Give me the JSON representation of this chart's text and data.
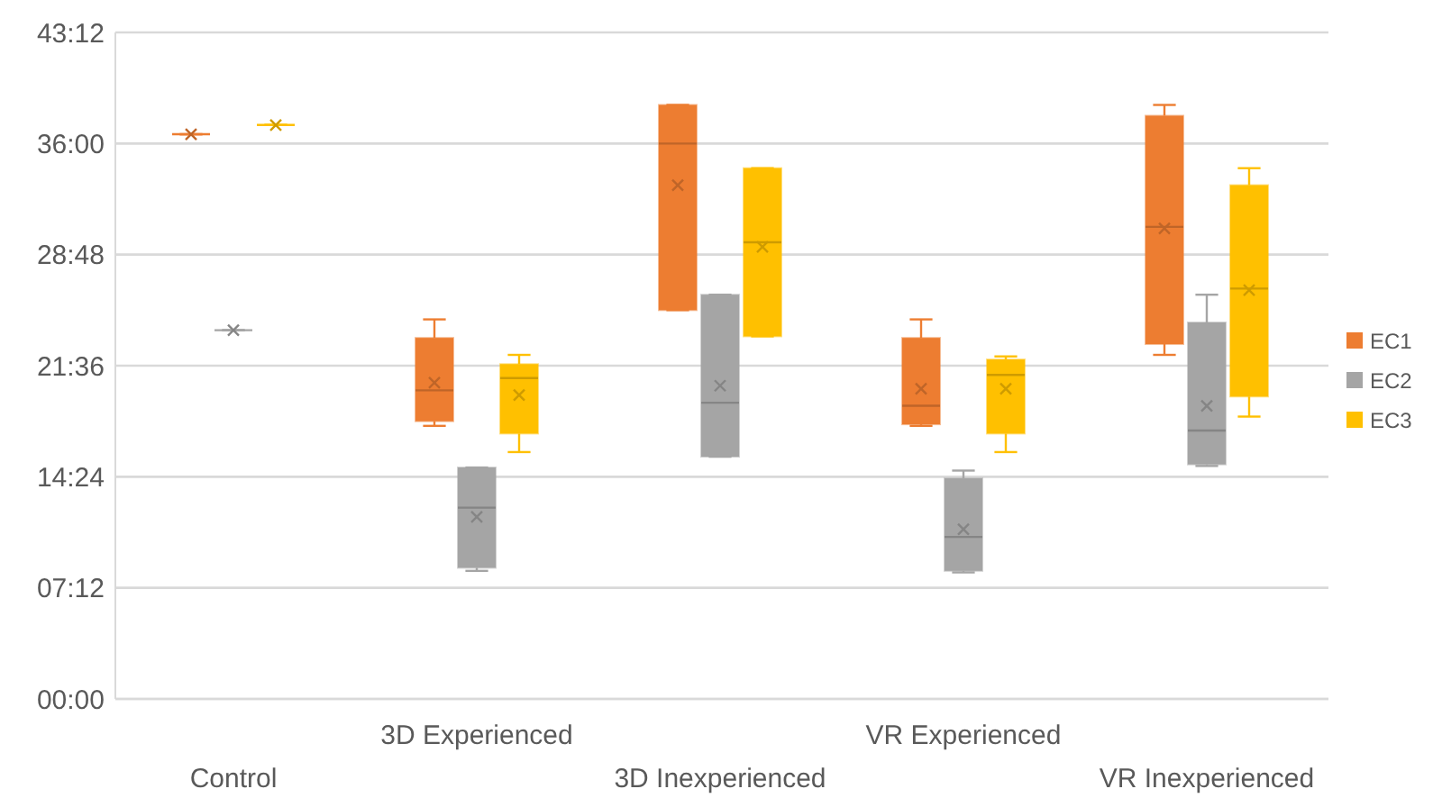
{
  "chart_data": {
    "type": "box",
    "categories": [
      "Control",
      "3D Experienced",
      "3D Inexperienced",
      "VR Experienced",
      "VR Inexperienced"
    ],
    "ylim": [
      0,
      43.2
    ],
    "yticks": [
      {
        "value": 0,
        "label": "00:00"
      },
      {
        "value": 7.2,
        "label": "07:12"
      },
      {
        "value": 14.4,
        "label": "14:24"
      },
      {
        "value": 21.6,
        "label": "21:36"
      },
      {
        "value": 28.8,
        "label": "28:48"
      },
      {
        "value": 36,
        "label": "36:00"
      },
      {
        "value": 43.2,
        "label": "43:12"
      }
    ],
    "grid": "y",
    "legend": "right",
    "series": [
      {
        "name": "EC1",
        "color": "#ed7d31",
        "boxes": [
          {
            "low": 36.6,
            "q1": 36.6,
            "median": 36.6,
            "q3": 36.6,
            "high": 36.6,
            "mean": 36.6
          },
          {
            "low": 17.7,
            "q1": 18.0,
            "median": 20.0,
            "q3": 23.4,
            "high": 24.6,
            "mean": 20.5
          },
          {
            "low": 25.2,
            "q1": 25.2,
            "median": 36.0,
            "q3": 38.5,
            "high": 38.5,
            "mean": 33.3
          },
          {
            "low": 17.7,
            "q1": 17.8,
            "median": 19.0,
            "q3": 23.4,
            "high": 24.6,
            "mean": 20.1
          },
          {
            "low": 22.3,
            "q1": 23.0,
            "median": 30.6,
            "q3": 37.8,
            "high": 38.5,
            "mean": 30.5
          }
        ]
      },
      {
        "name": "EC2",
        "color": "#a5a5a5",
        "boxes": [
          {
            "low": 23.9,
            "q1": 23.9,
            "median": 23.9,
            "q3": 23.9,
            "high": 23.9,
            "mean": 23.9
          },
          {
            "low": 8.3,
            "q1": 8.5,
            "median": 12.4,
            "q3": 15.0,
            "high": 15.0,
            "mean": 11.8
          },
          {
            "low": 15.7,
            "q1": 15.7,
            "median": 19.2,
            "q3": 26.2,
            "high": 26.2,
            "mean": 20.3
          },
          {
            "low": 8.2,
            "q1": 8.3,
            "median": 10.5,
            "q3": 14.3,
            "high": 14.8,
            "mean": 11.0
          },
          {
            "low": 15.1,
            "q1": 15.2,
            "median": 17.4,
            "q3": 24.4,
            "high": 26.2,
            "mean": 19.0
          }
        ]
      },
      {
        "name": "EC3",
        "color": "#ffc000",
        "boxes": [
          {
            "low": 37.2,
            "q1": 37.2,
            "median": 37.2,
            "q3": 37.2,
            "high": 37.2,
            "mean": 37.2
          },
          {
            "low": 16.0,
            "q1": 17.2,
            "median": 20.8,
            "q3": 21.7,
            "high": 22.3,
            "mean": 19.7
          },
          {
            "low": 23.5,
            "q1": 23.5,
            "median": 29.6,
            "q3": 34.4,
            "high": 34.4,
            "mean": 29.3
          },
          {
            "low": 16.0,
            "q1": 17.2,
            "median": 21.0,
            "q3": 22.0,
            "high": 22.2,
            "mean": 20.1
          },
          {
            "low": 18.3,
            "q1": 19.6,
            "median": 26.6,
            "q3": 33.3,
            "high": 34.4,
            "mean": 26.5
          }
        ]
      }
    ]
  }
}
